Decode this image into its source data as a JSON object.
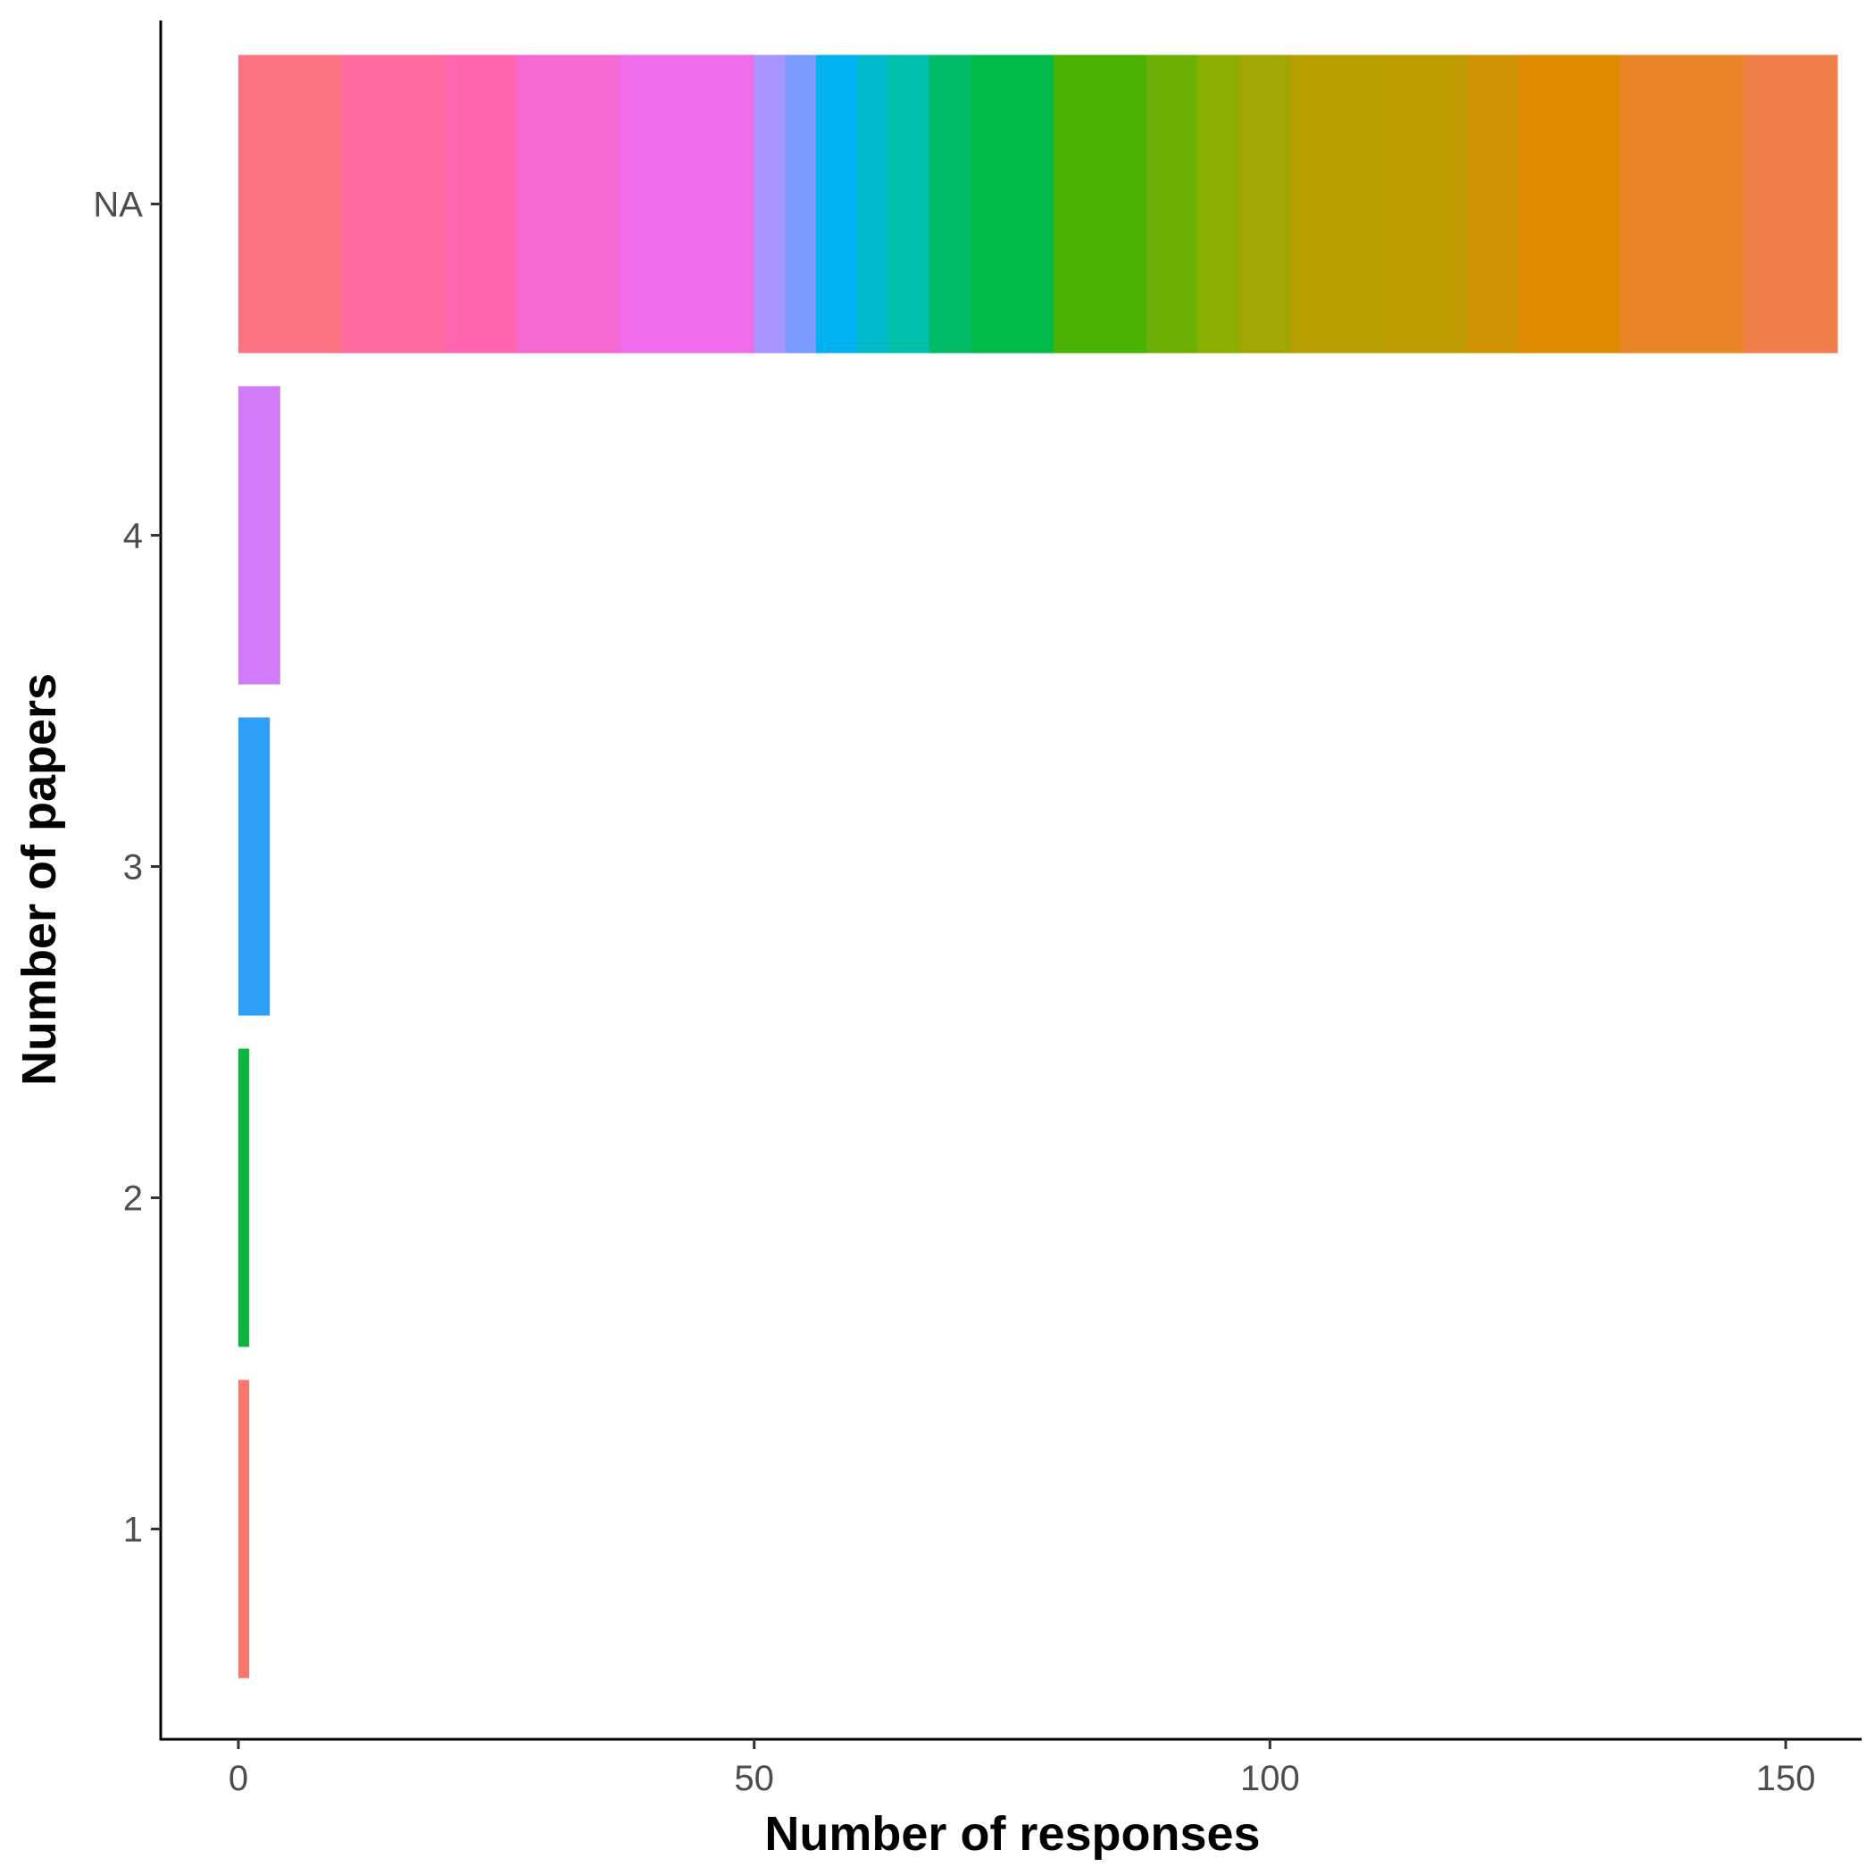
{
  "chart_data": {
    "type": "bar",
    "orientation": "horizontal",
    "stacked": true,
    "xlabel": "Number of responses",
    "ylabel": "Number of papers",
    "xlim": [
      -8,
      163
    ],
    "xticks": [
      0,
      50,
      100,
      150
    ],
    "categories": [
      "1",
      "2",
      "3",
      "4",
      "NA"
    ],
    "grid": false,
    "legend": "none",
    "bars": [
      {
        "category": "1",
        "segments": [
          {
            "value": 1,
            "color": "#F8766D"
          }
        ]
      },
      {
        "category": "2",
        "segments": [
          {
            "value": 1,
            "color": "#0CB53F"
          }
        ]
      },
      {
        "category": "3",
        "segments": [
          {
            "value": 3,
            "color": "#2E9FF9"
          }
        ]
      },
      {
        "category": "4",
        "segments": [
          {
            "value": 4,
            "color": "#D27AF8"
          }
        ]
      },
      {
        "category": "NA",
        "segments": [
          {
            "value": 10,
            "color": "#FB7483"
          },
          {
            "value": 10,
            "color": "#FE6AA0"
          },
          {
            "value": 7,
            "color": "#FF65B1"
          },
          {
            "value": 10,
            "color": "#F769D2"
          },
          {
            "value": 13,
            "color": "#F06BEA"
          },
          {
            "value": 3,
            "color": "#A995FE"
          },
          {
            "value": 3,
            "color": "#7A9AFF"
          },
          {
            "value": 4,
            "color": "#00B0EF"
          },
          {
            "value": 3,
            "color": "#00BACB"
          },
          {
            "value": 4,
            "color": "#00BFA8"
          },
          {
            "value": 4,
            "color": "#00BC68"
          },
          {
            "value": 8,
            "color": "#00BA49"
          },
          {
            "value": 9,
            "color": "#4AB204"
          },
          {
            "value": 5,
            "color": "#6CAF05"
          },
          {
            "value": 4,
            "color": "#8CAE02"
          },
          {
            "value": 5,
            "color": "#A2A503"
          },
          {
            "value": 9,
            "color": "#B79F02"
          },
          {
            "value": 8,
            "color": "#C09C03"
          },
          {
            "value": 5,
            "color": "#CD9302"
          },
          {
            "value": 10,
            "color": "#DF8C02"
          },
          {
            "value": 12,
            "color": "#E9862A"
          },
          {
            "value": 9,
            "color": "#F17F4C"
          }
        ]
      }
    ]
  }
}
